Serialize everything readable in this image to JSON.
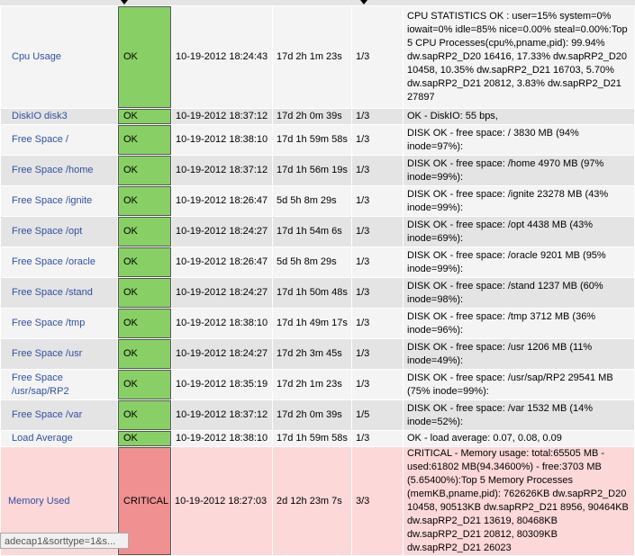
{
  "table": {
    "rows": [
      [
        "Cpu Usage",
        "OK",
        "10-19-2012 18:24:43",
        "17d 2h 1m 23s",
        "1/3",
        "CPU STATISTICS OK : user=15% system=0% iowait=0% idle=85% nice=0.00% steal=0.00%:Top 5 CPU Processes(cpu%,pname,pid): 99.94% dw.sapRP2_D20 16416, 17.33% dw.sapRP2_D20 10458, 10.35% dw.sapRP2_D21 16703, 5.70% dw.sapRP2_D21 20812, 3.83% dw.sapRP2_D21 27897"
      ],
      [
        "DiskIO disk3",
        "OK",
        "10-19-2012 18:37:12",
        "17d 2h 0m 39s",
        "1/3",
        "OK - DiskIO: 55 bps,"
      ],
      [
        "Free Space /",
        "OK",
        "10-19-2012 18:38:10",
        "17d 1h 59m 58s",
        "1/3",
        "DISK OK - free space: / 3830 MB (94% inode=97%):"
      ],
      [
        "Free Space /home",
        "OK",
        "10-19-2012 18:37:12",
        "17d 1h 56m 19s",
        "1/3",
        "DISK OK - free space: /home 4970 MB (97% inode=99%):"
      ],
      [
        "Free Space /ignite",
        "OK",
        "10-19-2012 18:26:47",
        "5d 5h 8m 29s",
        "1/3",
        "DISK OK - free space: /ignite 23278 MB (43% inode=99%):"
      ],
      [
        "Free Space /opt",
        "OK",
        "10-19-2012 18:24:27",
        "17d 1h 54m 6s",
        "1/3",
        "DISK OK - free space: /opt 4438 MB (43% inode=69%):"
      ],
      [
        "Free Space /oracle",
        "OK",
        "10-19-2012 18:26:47",
        "5d 5h 8m 29s",
        "1/3",
        "DISK OK - free space: /oracle 9201 MB (95% inode=99%):"
      ],
      [
        "Free Space /stand",
        "OK",
        "10-19-2012 18:24:27",
        "17d 1h 50m 48s",
        "1/3",
        "DISK OK - free space: /stand 1237 MB (60% inode=98%):"
      ],
      [
        "Free Space /tmp",
        "OK",
        "10-19-2012 18:38:10",
        "17d 1h 49m 17s",
        "1/3",
        "DISK OK - free space: /tmp 3712 MB (36% inode=96%):"
      ],
      [
        "Free Space /usr",
        "OK",
        "10-19-2012 18:24:27",
        "17d 2h 3m 45s",
        "1/3",
        "DISK OK - free space: /usr 1206 MB (11% inode=49%):"
      ],
      [
        "Free Space /usr/sap/RP2",
        "OK",
        "10-19-2012 18:35:19",
        "17d 2h 1m 23s",
        "1/3",
        "DISK OK - free space: /usr/sap/RP2 29541 MB (75% inode=99%):"
      ],
      [
        "Free Space /var",
        "OK",
        "10-19-2012 18:37:12",
        "17d 2h 0m 39s",
        "1/5",
        "DISK OK - free space: /var 1532 MB (14% inode=52%):"
      ],
      [
        "Load Average",
        "OK",
        "10-19-2012 18:38:10",
        "17d 1h 59m 58s",
        "1/3",
        "OK - load average: 0.07, 0.08, 0.09"
      ],
      [
        "Memory Used",
        "CRITICAL",
        "10-19-2012 18:27:03",
        "2d 12h 23m 7s",
        "3/3",
        "CRITICAL - Memory usage: total:65505 MB - used:61802 MB(94.34600%) - free:3703 MB (5.65400%):Top 5 Memory Processes (memKB,pname,pid): 762626KB dw.sapRP2_D20 10458, 90513KB dw.sapRP2_D21 8956, 90464KB dw.sapRP2_D21 13619, 80468KB dw.sapRP2_D21 20812, 80309KB dw.sapRP2_D21 26023"
      ]
    ]
  },
  "status_bar": "adecap1&sorttype=1&s..."
}
